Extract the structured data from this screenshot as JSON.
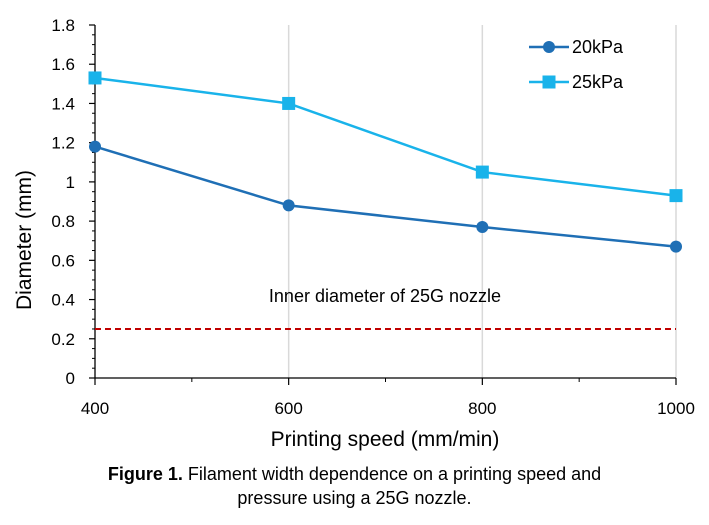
{
  "chart_data": {
    "type": "line",
    "xlabel": "Printing speed (mm/min)",
    "ylabel": "Diameter (mm)",
    "x": [
      400,
      600,
      800,
      1000
    ],
    "xlim": [
      400,
      1000
    ],
    "ylim": [
      0,
      1.8
    ],
    "xticks": [
      400,
      600,
      800,
      1000
    ],
    "yticks": [
      0,
      0.2,
      0.4,
      0.6,
      0.8,
      1,
      1.2,
      1.4,
      1.6,
      1.8
    ],
    "xtick_labels": [
      "400",
      "600",
      "800",
      "1000"
    ],
    "ytick_labels": [
      "0",
      "0.2",
      "0.4",
      "0.6",
      "0.8",
      "1",
      "1.2",
      "1.4",
      "1.6",
      "1.8"
    ],
    "grid": "vertical",
    "legend_position": "top-right",
    "series": [
      {
        "name": "20kPa",
        "values": [
          1.18,
          0.88,
          0.77,
          0.67
        ],
        "color": "#1f6fb5",
        "marker": "circle"
      },
      {
        "name": "25kPa",
        "values": [
          1.53,
          1.4,
          1.05,
          0.93
        ],
        "color": "#19b3ea",
        "marker": "square"
      }
    ],
    "reference_line": {
      "y": 0.25,
      "color": "#c00000",
      "style": "dashed",
      "label": "Inner diameter of 25G nozzle"
    }
  },
  "caption": {
    "prefix": "Figure 1.",
    "line1": " Filament width dependence on a printing speed and",
    "line2": "pressure using a 25G nozzle."
  }
}
